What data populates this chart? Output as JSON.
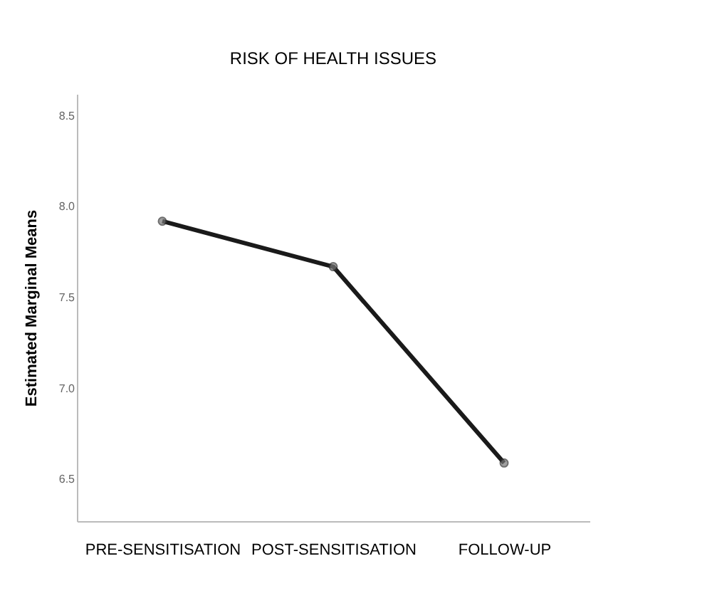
{
  "chart_data": {
    "type": "line",
    "title": "RISK OF HEALTH ISSUES",
    "ylabel": "Estimated Marginal Means",
    "categories": [
      "PRE-SENSITISATION",
      "POST-SENSITISATION",
      "FOLLOW-UP"
    ],
    "values": [
      7.92,
      7.67,
      6.59
    ],
    "color": "#1a1a1a",
    "ylim": [
      6.27,
      8.62
    ],
    "yticks": [
      6.5,
      {
        "value": 7,
        "label": "7.0"
      },
      7.5,
      {
        "value": 8,
        "label": "8.0"
      },
      8.5
    ],
    "grid": false,
    "marker": "circle",
    "line_style": "solid"
  }
}
